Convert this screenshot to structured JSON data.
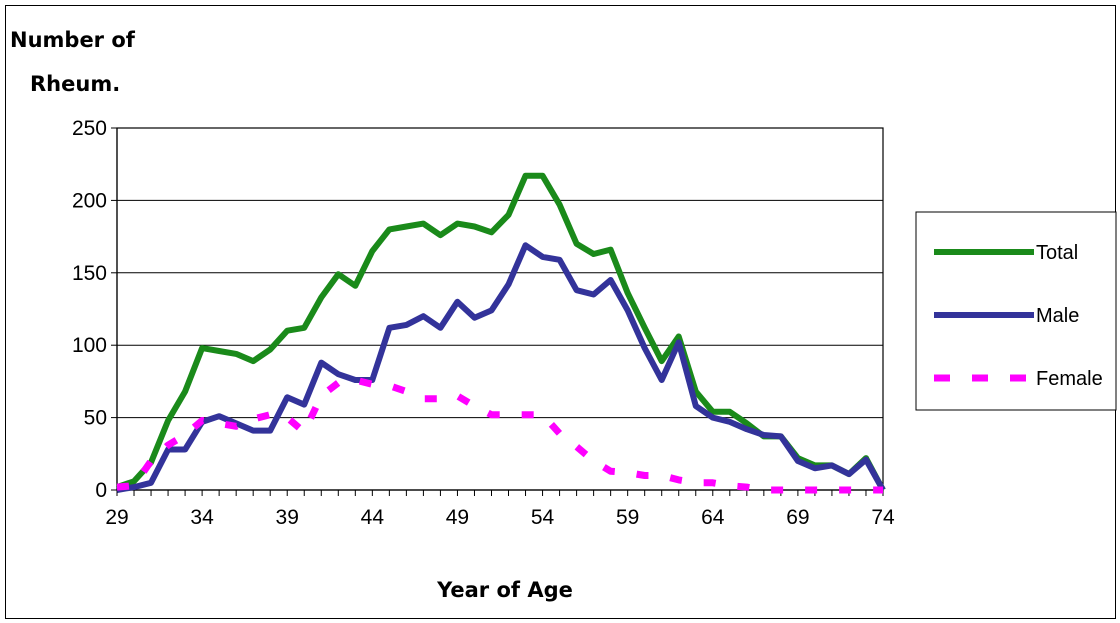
{
  "chart_data": {
    "type": "line",
    "ylabel_line1": "Number of",
    "ylabel_line2": "Rheum.",
    "xlabel": "Year of Age",
    "ylim": [
      0,
      250
    ],
    "yticks": [
      0,
      50,
      100,
      150,
      200,
      250
    ],
    "xlim": [
      29,
      74
    ],
    "xticks": [
      29,
      34,
      39,
      44,
      49,
      54,
      59,
      64,
      69,
      74
    ],
    "grid": "horizontal",
    "legend_position": "right",
    "x": [
      29,
      30,
      31,
      32,
      33,
      34,
      35,
      36,
      37,
      38,
      39,
      40,
      41,
      42,
      43,
      44,
      45,
      46,
      47,
      48,
      49,
      50,
      51,
      52,
      53,
      54,
      55,
      56,
      57,
      58,
      59,
      60,
      61,
      62,
      63,
      64,
      65,
      66,
      67,
      68,
      69,
      70,
      71,
      72,
      73,
      74
    ],
    "series": [
      {
        "name": "Total",
        "color": "#1a8a1a",
        "style": "solid",
        "values": [
          2,
          6,
          19,
          48,
          68,
          98,
          96,
          94,
          89,
          97,
          110,
          112,
          133,
          149,
          141,
          165,
          180,
          182,
          184,
          176,
          184,
          182,
          178,
          190,
          217,
          217,
          197,
          170,
          163,
          166,
          136,
          112,
          89,
          106,
          68,
          54,
          54,
          46,
          37,
          37,
          22,
          17,
          17,
          11,
          22,
          0
        ]
      },
      {
        "name": "Male",
        "color": "#33339a",
        "style": "solid",
        "values": [
          0,
          2,
          5,
          28,
          28,
          47,
          51,
          46,
          41,
          41,
          64,
          59,
          88,
          80,
          76,
          76,
          112,
          114,
          120,
          112,
          130,
          119,
          124,
          142,
          169,
          161,
          159,
          138,
          135,
          145,
          124,
          98,
          76,
          102,
          58,
          50,
          47,
          42,
          38,
          37,
          20,
          15,
          17,
          11,
          21,
          0
        ]
      },
      {
        "name": "Female",
        "color": "#ff00ff",
        "style": "dashed",
        "values": [
          2,
          3,
          20,
          31,
          38,
          48,
          46,
          44,
          49,
          52,
          50,
          40,
          65,
          74,
          76,
          73,
          72,
          68,
          63,
          63,
          65,
          58,
          52,
          52,
          52,
          52,
          39,
          30,
          20,
          13,
          12,
          10,
          10,
          7,
          5,
          5,
          3,
          2,
          0,
          0,
          0,
          0,
          0,
          0,
          0,
          0
        ]
      }
    ]
  }
}
